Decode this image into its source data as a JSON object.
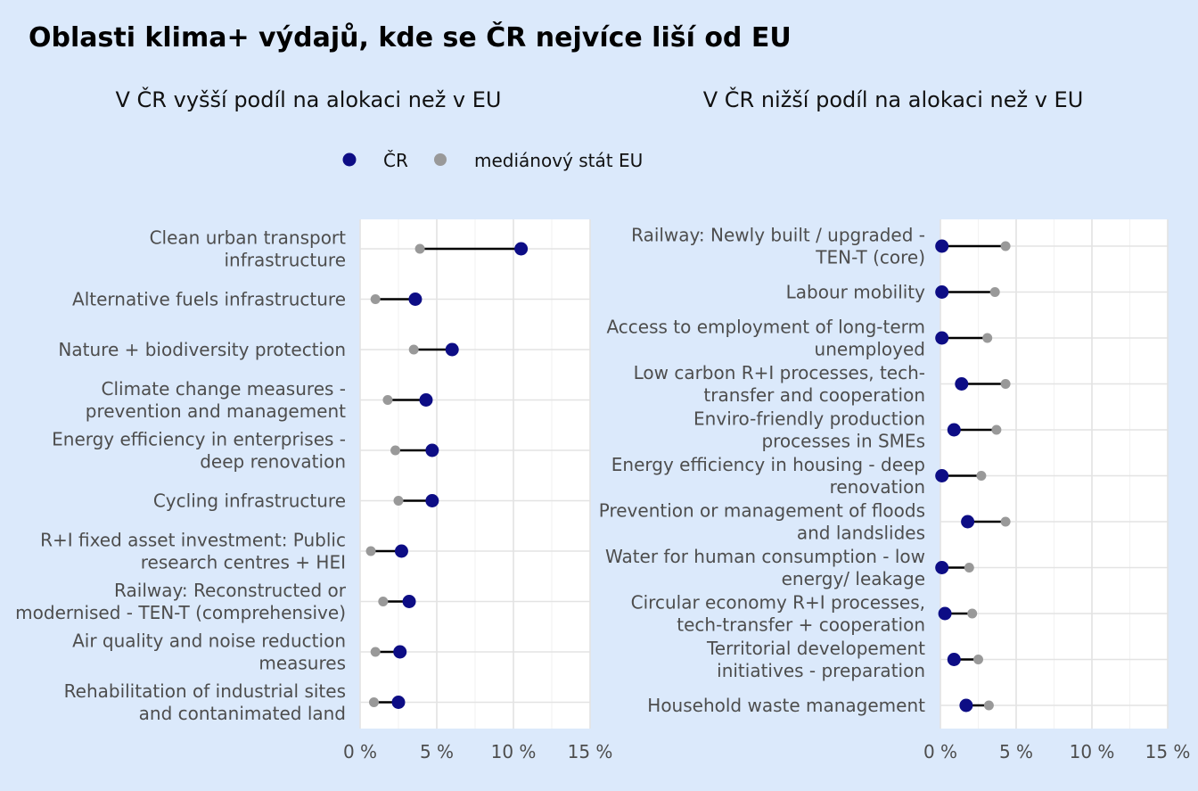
{
  "chart_data": {
    "title": "Oblasti klima+ výdajů, kde se ČR nejvíce liší od EU",
    "legend": [
      {
        "name": "ČR",
        "color": "#0d0d85"
      },
      {
        "name": "mediánový stát EU",
        "color": "#999999"
      }
    ],
    "panels": [
      {
        "type": "dumbbell",
        "subtitle": "V ČR vyšší podíl na alokaci než v EU",
        "xlim": [
          0,
          15
        ],
        "ticks": [
          0,
          5,
          10,
          15
        ],
        "tick_labels": [
          "0 %",
          "5 %",
          "10 %",
          "15 %"
        ],
        "rows": [
          {
            "label": [
              "Clean urban transport",
              "infrastructure"
            ],
            "cr": 10.5,
            "eu": 3.9
          },
          {
            "label": [
              "Alternative fuels infrastructure"
            ],
            "cr": 3.6,
            "eu": 1.0
          },
          {
            "label": [
              "Nature + biodiversity protection"
            ],
            "cr": 6.0,
            "eu": 3.5
          },
          {
            "label": [
              "Climate change measures -",
              "prevention and management"
            ],
            "cr": 4.3,
            "eu": 1.8
          },
          {
            "label": [
              "Energy efficiency in enterprises -",
              "deep renovation"
            ],
            "cr": 4.7,
            "eu": 2.3
          },
          {
            "label": [
              "Cycling infrastructure"
            ],
            "cr": 4.7,
            "eu": 2.5
          },
          {
            "label": [
              "R+I fixed asset investment: Public",
              "research centres + HEI"
            ],
            "cr": 2.7,
            "eu": 0.7
          },
          {
            "label": [
              "Railway: Reconstructed or",
              "modernised - TEN-T (comprehensive)"
            ],
            "cr": 3.2,
            "eu": 1.5
          },
          {
            "label": [
              "Air quality and noise reduction",
              "measures"
            ],
            "cr": 2.6,
            "eu": 1.0
          },
          {
            "label": [
              "Rehabilitation of industrial sites",
              "and contanimated land"
            ],
            "cr": 2.5,
            "eu": 0.9
          }
        ]
      },
      {
        "type": "dumbbell",
        "subtitle": "V ČR nižší podíl na alokaci než v EU",
        "xlim": [
          0,
          15
        ],
        "ticks": [
          0,
          5,
          10,
          15
        ],
        "tick_labels": [
          "0 %",
          "5 %",
          "10 %",
          "15 %"
        ],
        "rows": [
          {
            "label": [
              "Railway: Newly built / upgraded -",
              "TEN-T (core)"
            ],
            "cr": 0.1,
            "eu": 4.3
          },
          {
            "label": [
              "Labour mobility"
            ],
            "cr": 0.1,
            "eu": 3.6
          },
          {
            "label": [
              "Access to employment of long-term",
              "unemployed"
            ],
            "cr": 0.1,
            "eu": 3.1
          },
          {
            "label": [
              "Low carbon R+I processes, tech-",
              "transfer and cooperation"
            ],
            "cr": 1.4,
            "eu": 4.3
          },
          {
            "label": [
              "Enviro-friendly production",
              "processes in SMEs"
            ],
            "cr": 0.9,
            "eu": 3.7
          },
          {
            "label": [
              "Energy efficiency in housing - deep",
              "renovation"
            ],
            "cr": 0.1,
            "eu": 2.7
          },
          {
            "label": [
              "Prevention or management of floods",
              "and landslides"
            ],
            "cr": 1.8,
            "eu": 4.3
          },
          {
            "label": [
              "Water for human consumption - low",
              "energy/ leakage"
            ],
            "cr": 0.1,
            "eu": 1.9
          },
          {
            "label": [
              "Circular economy R+I processes,",
              "tech-transfer + cooperation"
            ],
            "cr": 0.3,
            "eu": 2.1
          },
          {
            "label": [
              "Territorial developement",
              "initiatives - preparation"
            ],
            "cr": 0.9,
            "eu": 2.5
          },
          {
            "label": [
              "Household waste management"
            ],
            "cr": 1.7,
            "eu": 3.2
          }
        ]
      }
    ]
  }
}
